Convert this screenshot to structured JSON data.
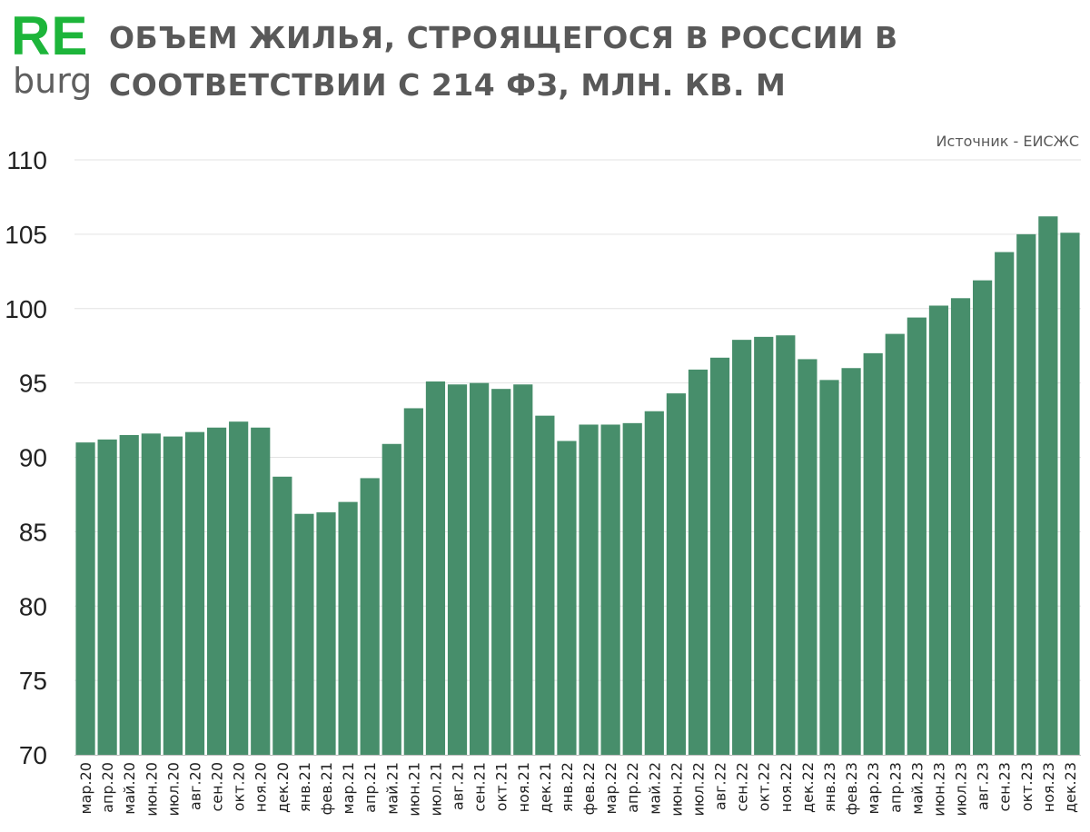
{
  "logo": {
    "line1": "RE",
    "line2": "burg",
    "line1_color": "#1db53a",
    "line2_color": "#5f5f5f"
  },
  "header": {
    "title": "ОБЪЕМ ЖИЛЬЯ, СТРОЯЩЕГОСЯ В РОССИИ В СООТВЕТСТВИИ С 214 ФЗ, МЛН. КВ. М",
    "source": "Источник - ЕИСЖС"
  },
  "chart_data": {
    "type": "bar",
    "title": "ОБЪЕМ ЖИЛЬЯ, СТРОЯЩЕГОСЯ В РОССИИ В СООТВЕТСТВИИ С 214 ФЗ, МЛН. КВ. М",
    "xlabel": "",
    "ylabel": "",
    "ylim": [
      70,
      110
    ],
    "yticks": [
      70,
      75,
      80,
      85,
      90,
      95,
      100,
      105,
      110
    ],
    "grid": true,
    "bar_color": "#478e6b",
    "categories": [
      "мар.20",
      "апр.20",
      "май.20",
      "июн.20",
      "июл.20",
      "авг.20",
      "сен.20",
      "окт.20",
      "ноя.20",
      "дек.20",
      "янв.21",
      "фев.21",
      "мар.21",
      "апр.21",
      "май.21",
      "июн.21",
      "июл.21",
      "авг.21",
      "сен.21",
      "окт.21",
      "ноя.21",
      "дек.21",
      "янв.22",
      "фев.22",
      "мар.22",
      "апр.22",
      "май.22",
      "июн.22",
      "июл.22",
      "авг.22",
      "сен.22",
      "окт.22",
      "ноя.22",
      "дек.22",
      "янв.23",
      "фев.23",
      "мар.23",
      "апр.23",
      "май.23",
      "июн.23",
      "июл.23",
      "авг.23",
      "сен.23",
      "окт.23",
      "ноя.23",
      "дек.23"
    ],
    "values": [
      91.0,
      91.2,
      91.5,
      91.6,
      91.4,
      91.7,
      92.0,
      92.4,
      92.0,
      88.7,
      86.2,
      86.3,
      87.0,
      88.6,
      90.9,
      93.3,
      95.1,
      94.9,
      95.0,
      94.6,
      94.9,
      92.8,
      91.1,
      92.2,
      92.2,
      92.3,
      93.1,
      94.3,
      95.9,
      96.7,
      97.9,
      98.1,
      98.2,
      96.6,
      95.2,
      96.0,
      97.0,
      98.3,
      99.4,
      100.2,
      100.7,
      101.9,
      103.8,
      105.0,
      106.2,
      105.1
    ]
  }
}
